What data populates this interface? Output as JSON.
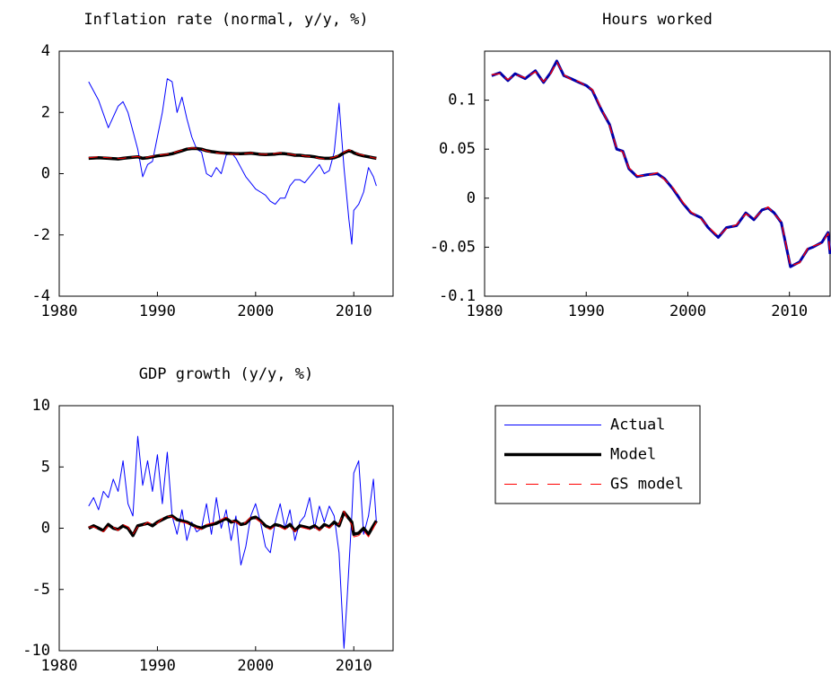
{
  "chart_data": [
    {
      "type": "line",
      "title": "Inflation rate (normal, y/y, %)",
      "x": [
        1983,
        1984,
        1985,
        1986,
        1986.5,
        1987,
        1988,
        1988.5,
        1989,
        1989.5,
        1990,
        1990.5,
        1991,
        1991.5,
        1992,
        1992.5,
        1993,
        1993.5,
        1994,
        1994.5,
        1995,
        1995.5,
        1996,
        1996.5,
        1997,
        1997.5,
        1998,
        1998.5,
        1999,
        1999.5,
        2000,
        2000.5,
        2001,
        2001.5,
        2002,
        2002.5,
        2003,
        2003.5,
        2004,
        2004.5,
        2005,
        2005.5,
        2006,
        2006.5,
        2007,
        2007.5,
        2008,
        2008.5,
        2009,
        2009.5,
        2009.8,
        2010,
        2010.5,
        2011,
        2011.5,
        2012,
        2012.3
      ],
      "series": [
        {
          "name": "Actual",
          "color": "#0000ff",
          "width": 1,
          "dashed": false,
          "values": [
            3.0,
            2.4,
            1.5,
            2.2,
            2.35,
            2.0,
            0.8,
            -0.1,
            0.3,
            0.4,
            1.2,
            2.0,
            3.1,
            3.0,
            2.0,
            2.5,
            1.8,
            1.2,
            0.8,
            0.7,
            0.0,
            -0.1,
            0.2,
            0.0,
            0.6,
            0.7,
            0.5,
            0.2,
            -0.1,
            -0.3,
            -0.5,
            -0.6,
            -0.7,
            -0.9,
            -1.0,
            -0.8,
            -0.8,
            -0.4,
            -0.2,
            -0.2,
            -0.3,
            -0.1,
            0.1,
            0.3,
            0.0,
            0.1,
            0.7,
            2.3,
            0.2,
            -1.5,
            -2.3,
            -1.2,
            -1.0,
            -0.6,
            0.2,
            -0.1,
            -0.4
          ]
        },
        {
          "name": "Model",
          "color": "#000000",
          "width": 3.5,
          "dashed": false,
          "values": [
            0.5,
            0.52,
            0.5,
            0.48,
            0.5,
            0.52,
            0.55,
            0.5,
            0.52,
            0.55,
            0.58,
            0.6,
            0.62,
            0.65,
            0.7,
            0.75,
            0.8,
            0.82,
            0.82,
            0.8,
            0.75,
            0.72,
            0.7,
            0.68,
            0.67,
            0.66,
            0.65,
            0.65,
            0.66,
            0.67,
            0.65,
            0.63,
            0.62,
            0.63,
            0.64,
            0.66,
            0.65,
            0.63,
            0.6,
            0.6,
            0.58,
            0.57,
            0.55,
            0.52,
            0.5,
            0.5,
            0.52,
            0.58,
            0.68,
            0.75,
            0.72,
            0.68,
            0.62,
            0.58,
            0.55,
            0.52,
            0.5
          ]
        },
        {
          "name": "GS model",
          "color": "#ff0000",
          "width": 1,
          "dashed": true,
          "values": [
            0.52,
            0.55,
            0.52,
            0.5,
            0.5,
            0.53,
            0.56,
            0.52,
            0.54,
            0.57,
            0.6,
            0.62,
            0.64,
            0.67,
            0.72,
            0.77,
            0.82,
            0.84,
            0.83,
            0.8,
            0.74,
            0.7,
            0.68,
            0.66,
            0.66,
            0.64,
            0.63,
            0.64,
            0.66,
            0.68,
            0.66,
            0.64,
            0.63,
            0.65,
            0.66,
            0.68,
            0.66,
            0.64,
            0.61,
            0.6,
            0.58,
            0.56,
            0.54,
            0.5,
            0.48,
            0.5,
            0.54,
            0.6,
            0.7,
            0.78,
            0.74,
            0.7,
            0.64,
            0.6,
            0.56,
            0.52,
            0.5
          ]
        }
      ],
      "xlim": [
        1980,
        2014
      ],
      "xticks": [
        1980,
        1990,
        2000,
        2010
      ],
      "ylim": [
        -4,
        4
      ],
      "yticks": [
        -4,
        -2,
        0,
        2,
        4
      ],
      "grid": false
    },
    {
      "type": "line",
      "title": "Hours worked",
      "x": [
        1980.7,
        1981.5,
        1982.3,
        1983,
        1984,
        1985,
        1985.8,
        1986.5,
        1987.1,
        1987.8,
        1988.5,
        1989.3,
        1990,
        1990.6,
        1991.5,
        1992.3,
        1993,
        1993.6,
        1994.2,
        1995,
        1996,
        1997,
        1997.7,
        1998.5,
        1999.5,
        2000.3,
        2001.3,
        2002,
        2003,
        2003.8,
        2004.8,
        2005.7,
        2006.5,
        2007.3,
        2007.9,
        2008.5,
        2009.2,
        2010.1,
        2011,
        2011.8,
        2012.3,
        2013.2,
        2013.8,
        2014
      ],
      "series": [
        {
          "name": "Actual",
          "color": "#0000aa",
          "width": 3,
          "dashed": false,
          "values": [
            0.125,
            0.128,
            0.12,
            0.127,
            0.122,
            0.13,
            0.118,
            0.128,
            0.14,
            0.125,
            0.122,
            0.118,
            0.115,
            0.11,
            0.09,
            0.075,
            0.05,
            0.048,
            0.03,
            0.022,
            0.024,
            0.025,
            0.02,
            0.01,
            -0.005,
            -0.015,
            -0.02,
            -0.03,
            -0.04,
            -0.03,
            -0.028,
            -0.015,
            -0.022,
            -0.012,
            -0.01,
            -0.015,
            -0.025,
            -0.07,
            -0.065,
            -0.052,
            -0.05,
            -0.045,
            -0.035,
            -0.057
          ]
        },
        {
          "name": "GS model",
          "color": "#ff0000",
          "width": 1.3,
          "dashed": true,
          "values": [
            0.126,
            0.127,
            0.121,
            0.126,
            0.123,
            0.129,
            0.119,
            0.127,
            0.139,
            0.126,
            0.121,
            0.119,
            0.114,
            0.111,
            0.091,
            0.074,
            0.051,
            0.047,
            0.031,
            0.023,
            0.023,
            0.026,
            0.019,
            0.011,
            -0.004,
            -0.014,
            -0.021,
            -0.029,
            -0.039,
            -0.031,
            -0.027,
            -0.016,
            -0.021,
            -0.013,
            -0.009,
            -0.016,
            -0.024,
            -0.069,
            -0.066,
            -0.051,
            -0.049,
            -0.046,
            -0.036,
            -0.056
          ]
        }
      ],
      "xlim": [
        1980,
        2014
      ],
      "xticks": [
        1980,
        1990,
        2000,
        2010
      ],
      "ylim": [
        -0.1,
        0.15
      ],
      "yticks": [
        -0.1,
        -0.05,
        0,
        0.05,
        0.1
      ],
      "grid": false
    },
    {
      "type": "line",
      "title": "GDP growth (y/y, %)",
      "x": [
        1983,
        1983.5,
        1984,
        1984.5,
        1985,
        1985.5,
        1986,
        1986.5,
        1987,
        1987.5,
        1988,
        1988.5,
        1989,
        1989.5,
        1990,
        1990.5,
        1991,
        1991.5,
        1992,
        1992.5,
        1993,
        1993.5,
        1994,
        1994.5,
        1995,
        1995.5,
        1996,
        1996.5,
        1997,
        1997.5,
        1998,
        1998.5,
        1999,
        1999.5,
        2000,
        2000.5,
        2001,
        2001.5,
        2002,
        2002.5,
        2003,
        2003.5,
        2004,
        2004.5,
        2005,
        2005.5,
        2006,
        2006.5,
        2007,
        2007.5,
        2008,
        2008.5,
        2009,
        2009.3,
        2009.8,
        2010,
        2010.5,
        2011,
        2011.5,
        2012,
        2012.3
      ],
      "series": [
        {
          "name": "Actual",
          "color": "#0000ff",
          "width": 1,
          "dashed": false,
          "values": [
            1.8,
            2.5,
            1.5,
            3.0,
            2.5,
            4.0,
            3.0,
            5.5,
            2.0,
            1.0,
            7.5,
            3.5,
            5.5,
            3.0,
            6.0,
            2.0,
            6.2,
            1.0,
            -0.5,
            1.5,
            -1.0,
            0.5,
            -0.3,
            0.0,
            2.0,
            -0.5,
            2.5,
            0.0,
            1.5,
            -1.0,
            1.0,
            -3.0,
            -1.5,
            1.0,
            2.0,
            0.5,
            -1.5,
            -2.0,
            0.5,
            2.0,
            0.0,
            1.5,
            -1.0,
            0.5,
            1.0,
            2.5,
            0.0,
            1.8,
            0.5,
            1.8,
            1.0,
            -2.0,
            -9.8,
            -6.0,
            1.0,
            4.5,
            5.5,
            -0.5,
            1.0,
            4.0,
            0.5
          ]
        },
        {
          "name": "Model",
          "color": "#000000",
          "width": 3.5,
          "dashed": false,
          "values": [
            0.0,
            0.2,
            0.0,
            -0.2,
            0.3,
            0.0,
            -0.1,
            0.2,
            0.0,
            -0.6,
            0.2,
            0.3,
            0.4,
            0.2,
            0.5,
            0.7,
            0.9,
            1.0,
            0.7,
            0.6,
            0.5,
            0.3,
            0.1,
            0.0,
            0.2,
            0.3,
            0.4,
            0.6,
            0.8,
            0.5,
            0.6,
            0.3,
            0.4,
            0.8,
            0.9,
            0.6,
            0.2,
            0.0,
            0.3,
            0.2,
            0.0,
            0.3,
            -0.2,
            0.2,
            0.1,
            0.0,
            0.2,
            -0.1,
            0.3,
            0.1,
            0.5,
            0.2,
            1.3,
            1.0,
            0.5,
            -0.5,
            -0.4,
            0.0,
            -0.5,
            0.2,
            0.6
          ]
        },
        {
          "name": "GS model",
          "color": "#ff0000",
          "width": 1,
          "dashed": true,
          "values": [
            0.1,
            0.1,
            -0.1,
            -0.3,
            0.2,
            0.1,
            -0.2,
            0.3,
            0.1,
            -0.5,
            0.1,
            0.2,
            0.5,
            0.3,
            0.4,
            0.8,
            1.0,
            0.9,
            0.6,
            0.5,
            0.4,
            0.2,
            0.0,
            -0.1,
            0.3,
            0.4,
            0.5,
            0.7,
            0.9,
            0.6,
            0.5,
            0.2,
            0.5,
            0.9,
            0.8,
            0.5,
            0.1,
            -0.1,
            0.2,
            0.1,
            -0.1,
            0.2,
            -0.3,
            0.1,
            0.0,
            -0.1,
            0.1,
            -0.2,
            0.2,
            0.0,
            0.4,
            0.3,
            1.4,
            0.8,
            0.3,
            -0.7,
            -0.6,
            -0.2,
            -0.7,
            0.0,
            0.5
          ]
        }
      ],
      "xlim": [
        1980,
        2014
      ],
      "xticks": [
        1980,
        1990,
        2000,
        2010
      ],
      "ylim": [
        -10,
        10
      ],
      "yticks": [
        -10,
        -5,
        0,
        5,
        10
      ],
      "grid": false,
      "legend": "right"
    }
  ]
}
